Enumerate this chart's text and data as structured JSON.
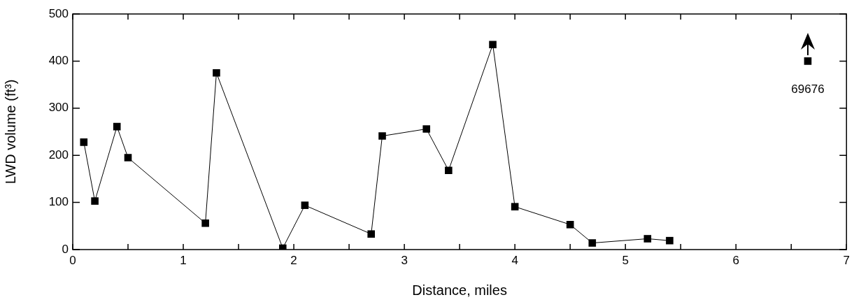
{
  "chart_data": {
    "type": "line",
    "xlabel": "Distance, miles",
    "ylabel": "LWD volume (ft³)",
    "xlim": [
      0,
      7
    ],
    "ylim": [
      0,
      500
    ],
    "xticks": [
      0,
      {
        "value": 0.5,
        "label": null
      },
      1,
      {
        "value": 1.5,
        "label": null
      },
      2,
      {
        "value": 2.5,
        "label": null
      },
      3,
      {
        "value": 3.5,
        "label": null
      },
      4,
      {
        "value": 4.5,
        "label": null
      },
      5,
      {
        "value": 5.5,
        "label": null
      },
      6,
      {
        "value": 6.5,
        "label": null
      },
      7
    ],
    "yticks": [
      0,
      100,
      200,
      300,
      400,
      500
    ],
    "grid": false,
    "legend": false,
    "marker": "square",
    "line_style": "solid",
    "series": [
      {
        "type": "line",
        "color": "#000000",
        "x": [
          0.1,
          0.2,
          0.4,
          0.5,
          1.2,
          1.3,
          1.9,
          2.1,
          2.7,
          2.8,
          3.2,
          3.4,
          3.8,
          4.0,
          4.5,
          4.7,
          5.2,
          5.4
        ],
        "values": [
          228,
          103,
          261,
          195,
          56,
          375,
          3,
          94,
          33,
          241,
          256,
          168,
          435,
          91,
          53,
          14,
          23,
          19
        ]
      },
      {
        "type": "scatter",
        "color": "#000000",
        "x": [
          6.65
        ],
        "values": [
          400
        ]
      }
    ],
    "annotations": [
      {
        "text": "69676",
        "x": 6.65,
        "y": 400
      }
    ]
  }
}
